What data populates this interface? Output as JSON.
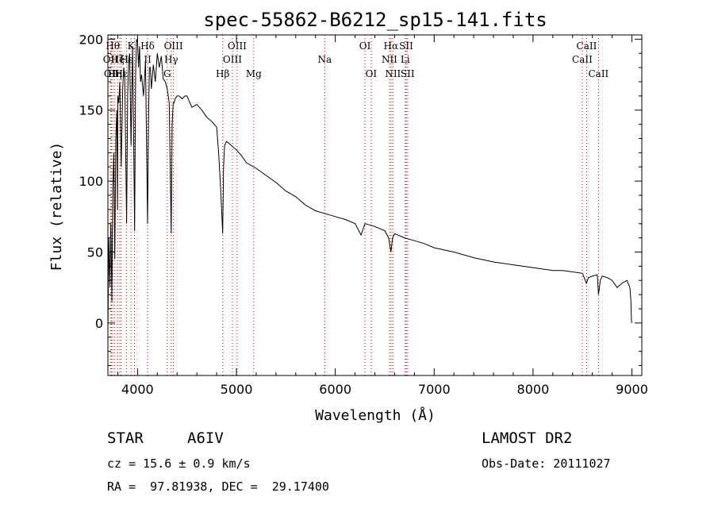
{
  "chart_data": {
    "type": "line",
    "title": "spec-55862-B6212_sp15-141.fits",
    "xlabel": "Wavelength (Å)",
    "ylabel": "Flux (relative)",
    "xlim": [
      3700,
      9100
    ],
    "ylim": [
      -37,
      203
    ],
    "xticks": [
      4000,
      5000,
      6000,
      7000,
      8000,
      9000
    ],
    "yticks": [
      0,
      50,
      100,
      150,
      200
    ],
    "grid": false,
    "series": [
      {
        "x": [
          3700,
          3710,
          3720,
          3730,
          3740,
          3750,
          3760,
          3770,
          3780,
          3790,
          3797,
          3800,
          3810,
          3820,
          3835,
          3850,
          3860,
          3870,
          3889,
          3900,
          3910,
          3920,
          3934,
          3950,
          3970,
          3980,
          3990,
          4000,
          4010,
          4020,
          4030,
          4040,
          4060,
          4080,
          4101,
          4110,
          4120,
          4130,
          4140,
          4160,
          4180,
          4200,
          4220,
          4240,
          4260,
          4280,
          4300,
          4320,
          4340,
          4350,
          4360,
          4370,
          4380,
          4400,
          4420,
          4450,
          4480,
          4500,
          4550,
          4600,
          4650,
          4700,
          4750,
          4800,
          4820,
          4840,
          4861,
          4870,
          4880,
          4900,
          4950,
          5000,
          5050,
          5100,
          5200,
          5300,
          5400,
          5500,
          5600,
          5700,
          5800,
          5900,
          6000,
          6100,
          6200,
          6260,
          6300,
          6400,
          6500,
          6540,
          6563,
          6580,
          6600,
          6700,
          6800,
          6900,
          7000,
          7200,
          7400,
          7600,
          7800,
          8000,
          8200,
          8300,
          8400,
          8500,
          8540,
          8560,
          8600,
          8650,
          8662,
          8680,
          8700,
          8750,
          8800,
          8850,
          8900,
          8950,
          8980,
          8990,
          8995,
          9000
        ],
        "y": [
          -5,
          60,
          25,
          70,
          15,
          95,
          120,
          45,
          130,
          150,
          80,
          160,
          155,
          170,
          110,
          165,
          180,
          175,
          70,
          160,
          185,
          190,
          125,
          195,
          65,
          175,
          200,
          198,
          180,
          195,
          170,
          175,
          160,
          185,
          70,
          140,
          180,
          180,
          165,
          182,
          170,
          190,
          180,
          188,
          172,
          170,
          165,
          155,
          63,
          140,
          155,
          155,
          158,
          160,
          160,
          158,
          160,
          160,
          152,
          154,
          150,
          145,
          142,
          138,
          120,
          95,
          63,
          110,
          125,
          128,
          125,
          122,
          118,
          113,
          109,
          104,
          99,
          93,
          89,
          83,
          79,
          77,
          75,
          73,
          70,
          62,
          70,
          68,
          65,
          60,
          50,
          60,
          63,
          60,
          58,
          56,
          53,
          50,
          46,
          43,
          41,
          39,
          37,
          37,
          36,
          35,
          28,
          32,
          33,
          34,
          20,
          30,
          33,
          32,
          30,
          25,
          28,
          30,
          25,
          15,
          2,
          0
        ]
      }
    ],
    "lines": [
      {
        "w": 3727,
        "label": "OII",
        "row": 1
      },
      {
        "w": 3736,
        "label": "OII",
        "row": 2
      },
      {
        "w": 3750,
        "label": "Hθ",
        "row": 0
      },
      {
        "w": 3770,
        "label": "Hη",
        "row": 2
      },
      {
        "w": 3798,
        "label": "Hζ",
        "row": 1
      },
      {
        "w": 3820,
        "label": "HeI",
        "row": 1
      },
      {
        "w": 3835,
        "label": "Hε",
        "row": 2
      },
      {
        "w": 3889,
        "label": "Hε",
        "row": 1
      },
      {
        "w": 3934,
        "label": "K",
        "row": 0
      },
      {
        "w": 3969,
        "label": "",
        "row": 0
      },
      {
        "w": 4101,
        "label": "Hδ",
        "row": 0
      },
      {
        "w": 4102,
        "label": "II",
        "row": 1
      },
      {
        "w": 4300,
        "label": "G",
        "row": 2
      },
      {
        "w": 4340,
        "label": "Hγ",
        "row": 1
      },
      {
        "w": 4363,
        "label": "OIII",
        "row": 0
      },
      {
        "w": 4861,
        "label": "Hβ",
        "row": 2
      },
      {
        "w": 4959,
        "label": "OIII",
        "row": 1
      },
      {
        "w": 5007,
        "label": "OIII",
        "row": 0
      },
      {
        "w": 5175,
        "label": "Mg",
        "row": 2
      },
      {
        "w": 5893,
        "label": "Na",
        "row": 1
      },
      {
        "w": 6300,
        "label": "OI",
        "row": 0
      },
      {
        "w": 6363,
        "label": "OI",
        "row": 2
      },
      {
        "w": 6548,
        "label": "NII",
        "row": 1
      },
      {
        "w": 6563,
        "label": "Hα",
        "row": 0
      },
      {
        "w": 6583,
        "label": "NII",
        "row": 2
      },
      {
        "w": 6707,
        "label": "Li",
        "row": 1
      },
      {
        "w": 6717,
        "label": "SII",
        "row": 0
      },
      {
        "w": 6731,
        "label": "SII",
        "row": 2
      },
      {
        "w": 8498,
        "label": "CaII",
        "row": 1
      },
      {
        "w": 8542,
        "label": "CaII",
        "row": 0
      },
      {
        "w": 8662,
        "label": "CaII",
        "row": 2
      }
    ]
  },
  "info": {
    "object_class": "STAR",
    "subclass": "A6IV",
    "survey": "LAMOST DR2",
    "redshift": "cz = 15.6 ± 0.9 km/s",
    "obs_date": "Obs-Date: 20111027",
    "coords": "RA =  97.81938, DEC =  29.17400"
  },
  "colors": {
    "line_marker": "#cc0000",
    "spectrum": "#000000"
  }
}
